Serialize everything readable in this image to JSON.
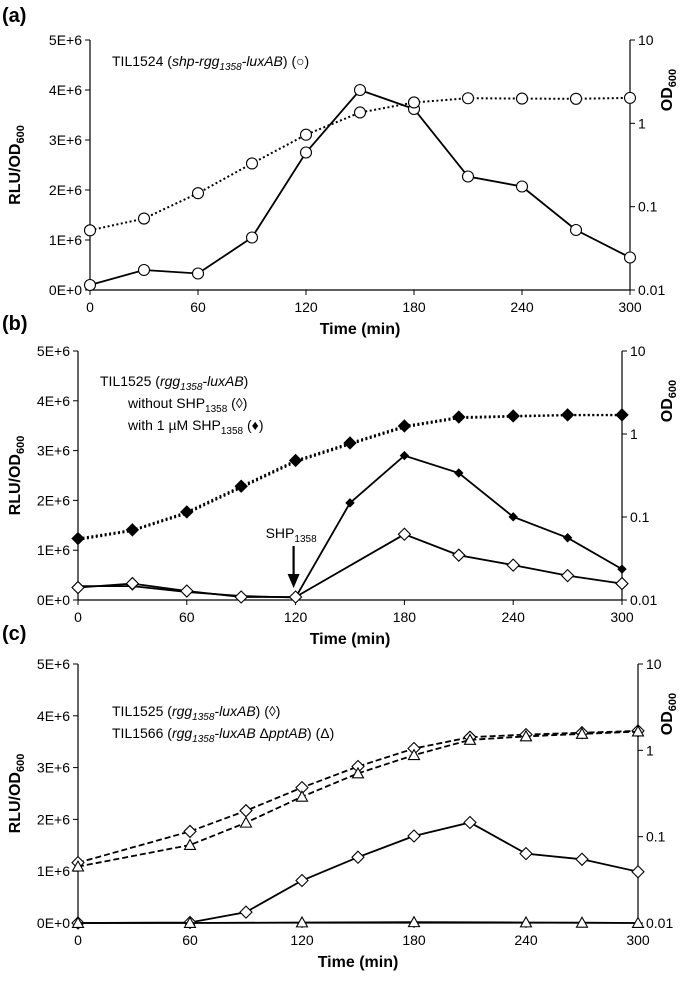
{
  "chart_data": [
    {
      "panel": "(a)",
      "type": "line",
      "xlabel": "Time (min)",
      "ylabel": "RLU/OD",
      "ylabel_sub": "600",
      "y2label": "OD",
      "y2label_sub": "600",
      "xlim": [
        0,
        300
      ],
      "xticks": [
        0,
        60,
        120,
        180,
        240,
        300
      ],
      "xtick_labels": [
        "0",
        "60",
        "120",
        "180",
        "240",
        "300"
      ],
      "ylim": [
        0,
        5000000
      ],
      "yticks": [
        0,
        1000000,
        2000000,
        3000000,
        4000000,
        5000000
      ],
      "ytick_labels": [
        "0E+0",
        "1E+6",
        "2E+6",
        "3E+6",
        "4E+6",
        "5E+6"
      ],
      "y2lim": [
        0.01,
        10
      ],
      "y2ticks": [
        0.01,
        0.1,
        1,
        10
      ],
      "y2tick_labels": [
        "0.01",
        "0.1",
        "1",
        "10"
      ],
      "legend": [
        {
          "text": "TIL1524 (",
          "italic": false
        },
        {
          "text": "shp-rgg",
          "italic": true
        },
        {
          "text": "1358",
          "italic": true,
          "sub": true
        },
        {
          "text": "-luxAB",
          "italic": true
        },
        {
          "text": ") (○)",
          "italic": false
        }
      ],
      "annotation": null,
      "series": [
        {
          "name": "RLU/OD600 TIL1524",
          "axis": "left",
          "style": "solid",
          "marker": "open-circle",
          "x": [
            0,
            30,
            60,
            90,
            120,
            150,
            180,
            210,
            240,
            270,
            300
          ],
          "values": [
            100000,
            400000,
            330000,
            1050000,
            2750000,
            4000000,
            3620000,
            2270000,
            2070000,
            1200000,
            650000
          ]
        },
        {
          "name": "OD600 TIL1524",
          "axis": "right",
          "style": "dotted",
          "marker": "open-circle",
          "x": [
            0,
            30,
            60,
            90,
            120,
            150,
            180,
            210,
            240,
            270,
            300
          ],
          "values": [
            0.052,
            0.072,
            0.145,
            0.33,
            0.73,
            1.35,
            1.78,
            2.0,
            1.98,
            1.97,
            2.02
          ]
        }
      ]
    },
    {
      "panel": "(b)",
      "type": "line",
      "xlabel": "Time (min)",
      "ylabel": "RLU/OD",
      "ylabel_sub": "600",
      "y2label": "OD",
      "y2label_sub": "600",
      "xlim": [
        0,
        300
      ],
      "xticks": [
        0,
        60,
        120,
        180,
        240,
        300
      ],
      "xtick_labels": [
        "0",
        "60",
        "120",
        "180",
        "240",
        "300"
      ],
      "ylim": [
        0,
        5000000
      ],
      "yticks": [
        0,
        1000000,
        2000000,
        3000000,
        4000000,
        5000000
      ],
      "ytick_labels": [
        "0E+0",
        "1E+6",
        "2E+6",
        "3E+6",
        "4E+6",
        "5E+6"
      ],
      "y2lim": [
        0.01,
        10
      ],
      "y2ticks": [
        0.01,
        0.1,
        1,
        10
      ],
      "y2tick_labels": [
        "0.01",
        "0.1",
        "1",
        "10"
      ],
      "legend": [
        [
          {
            "text": "TIL1525 (",
            "italic": false
          },
          {
            "text": "rgg",
            "italic": true
          },
          {
            "text": "1358",
            "italic": true,
            "sub": true
          },
          {
            "text": "-luxAB",
            "italic": true
          },
          {
            "text": ")",
            "italic": false
          }
        ],
        [
          {
            "text": "without SHP",
            "italic": false
          },
          {
            "text": "1358",
            "italic": false,
            "sub": true
          },
          {
            "text": " (◊)",
            "italic": false
          }
        ],
        [
          {
            "text": "with 1 µM  SHP",
            "italic": false
          },
          {
            "text": "1358",
            "italic": false,
            "sub": true
          },
          {
            "text": " (♦)",
            "italic": false
          }
        ]
      ],
      "annotation": {
        "text": "SHP",
        "sub": "1358",
        "x": 120
      },
      "series": [
        {
          "name": "RLU/OD600 with SHP1358",
          "axis": "left",
          "style": "solid",
          "marker": "filled-diamond-small",
          "x": [
            0,
            30,
            60,
            90,
            120,
            150,
            180,
            210,
            240,
            270,
            300
          ],
          "values": [
            280000,
            280000,
            160000,
            80000,
            50000,
            1950000,
            2900000,
            2550000,
            1670000,
            1250000,
            620000
          ]
        },
        {
          "name": "RLU/OD600 without SHP1358",
          "axis": "left",
          "style": "solid",
          "marker": "open-diamond",
          "x": [
            0,
            30,
            60,
            90,
            120,
            180,
            210,
            240,
            270,
            300
          ],
          "values": [
            250000,
            330000,
            180000,
            60000,
            60000,
            1320000,
            900000,
            700000,
            490000,
            330000
          ]
        },
        {
          "name": "OD600 with SHP1358",
          "axis": "right",
          "style": "dotted",
          "marker": "filled-diamond",
          "x": [
            0,
            30,
            60,
            90,
            120,
            150,
            180,
            210,
            240,
            270,
            300
          ],
          "values": [
            0.055,
            0.07,
            0.115,
            0.235,
            0.48,
            0.78,
            1.25,
            1.6,
            1.65,
            1.7,
            1.7
          ]
        },
        {
          "name": "OD600 without SHP1358",
          "axis": "right",
          "style": "dotted",
          "marker": "none",
          "x": [
            0,
            30,
            60,
            90,
            120,
            150,
            180,
            210,
            240,
            270,
            300
          ],
          "values": [
            0.053,
            0.068,
            0.11,
            0.225,
            0.46,
            0.75,
            1.2,
            1.55,
            1.62,
            1.68,
            1.68
          ]
        }
      ]
    },
    {
      "panel": "(c)",
      "type": "line",
      "xlabel": "Time (min)",
      "ylabel": "RLU/OD",
      "ylabel_sub": "600",
      "y2label": "OD",
      "y2label_sub": "600",
      "xlim": [
        0,
        300
      ],
      "xticks": [
        0,
        60,
        120,
        180,
        240,
        300
      ],
      "xtick_labels": [
        "0",
        "60",
        "120",
        "180",
        "240",
        "300"
      ],
      "ylim": [
        0,
        5000000
      ],
      "yticks": [
        0,
        1000000,
        2000000,
        3000000,
        4000000,
        5000000
      ],
      "ytick_labels": [
        "0E+0",
        "1E+6",
        "2E+6",
        "3E+6",
        "4E+6",
        "5E+6"
      ],
      "y2lim": [
        0.01,
        10
      ],
      "y2ticks": [
        0.01,
        0.1,
        1,
        10
      ],
      "y2tick_labels": [
        "0.01",
        "0.1",
        "1",
        "10"
      ],
      "legend": [
        [
          {
            "text": "TIL1525 (",
            "italic": false
          },
          {
            "text": "rgg",
            "italic": true
          },
          {
            "text": "1358",
            "italic": true,
            "sub": true
          },
          {
            "text": "-luxAB",
            "italic": true
          },
          {
            "text": ") (◊)",
            "italic": false
          }
        ],
        [
          {
            "text": "TIL1566 (",
            "italic": false
          },
          {
            "text": "rgg",
            "italic": true
          },
          {
            "text": "1358",
            "italic": true,
            "sub": true
          },
          {
            "text": "-luxAB ",
            "italic": true
          },
          {
            "text": "Δ",
            "italic": false
          },
          {
            "text": "pptAB",
            "italic": true
          },
          {
            "text": ") (Δ)",
            "italic": false
          }
        ]
      ],
      "annotation": null,
      "series": [
        {
          "name": "OD600 TIL1525",
          "axis": "right",
          "style": "dashed",
          "marker": "open-diamond",
          "x": [
            0,
            60,
            90,
            120,
            150,
            180,
            210,
            240,
            270,
            300
          ],
          "values": [
            0.05,
            0.115,
            0.2,
            0.37,
            0.65,
            1.05,
            1.42,
            1.52,
            1.6,
            1.68
          ]
        },
        {
          "name": "OD600 TIL1566",
          "axis": "right",
          "style": "dashed",
          "marker": "open-triangle",
          "x": [
            0,
            60,
            90,
            120,
            150,
            180,
            210,
            240,
            270,
            300
          ],
          "values": [
            0.045,
            0.08,
            0.145,
            0.29,
            0.54,
            0.88,
            1.32,
            1.45,
            1.55,
            1.65
          ]
        },
        {
          "name": "RLU/OD600 TIL1525",
          "axis": "left",
          "style": "solid",
          "marker": "open-diamond",
          "x": [
            0,
            60,
            90,
            120,
            150,
            180,
            210,
            240,
            270,
            300
          ],
          "values": [
            0,
            10000,
            210000,
            820000,
            1270000,
            1680000,
            1940000,
            1340000,
            1230000,
            990000
          ]
        },
        {
          "name": "RLU/OD600 TIL1566",
          "axis": "left",
          "style": "solid",
          "marker": "open-triangle",
          "x": [
            0,
            60,
            120,
            180,
            240,
            270,
            300
          ],
          "values": [
            0,
            0,
            10000,
            15000,
            10000,
            5000,
            0
          ]
        }
      ]
    }
  ]
}
